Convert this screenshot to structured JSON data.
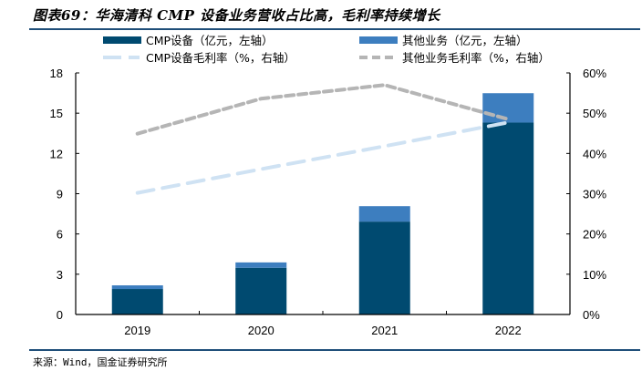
{
  "title": "图表69：华海清科 CMP 设备业务营收占比高，毛利率持续增长",
  "source": "来源：Wind，国金证券研究所",
  "colors": {
    "cmp_equipment": "#004a70",
    "other_business": "#3d7ebf",
    "cmp_margin": "#cfe2f3",
    "other_margin": "#b5b5b5",
    "rule": "#1f4e79"
  },
  "chart_data": {
    "type": "bar",
    "stacked": true,
    "title": "华海清科 CMP 设备业务营收占比高，毛利率持续增长",
    "categories": [
      "2019",
      "2020",
      "2021",
      "2022"
    ],
    "series": [
      {
        "name": "CMP设备（亿元，左轴）",
        "type": "bar",
        "axis": "left",
        "values": [
          1.9,
          3.48,
          6.92,
          14.3
        ]
      },
      {
        "name": "其他业务（亿元，左轴）",
        "type": "bar",
        "axis": "left",
        "values": [
          0.27,
          0.4,
          1.15,
          2.19
        ]
      },
      {
        "name": "CMP设备毛利率（%，右轴）",
        "type": "line",
        "axis": "right",
        "style": "dashed",
        "values": [
          30.2,
          36.1,
          41.8,
          47.7
        ]
      },
      {
        "name": "其他业务毛利率（%，右轴）",
        "type": "line",
        "axis": "right",
        "style": "dashed",
        "values": [
          44.9,
          53.6,
          57.0,
          48.5
        ]
      }
    ],
    "y_left": {
      "min": 0,
      "max": 18,
      "ticks": [
        0,
        3,
        6,
        9,
        12,
        15,
        18
      ],
      "tick_labels": [
        "0",
        "3",
        "6",
        "9",
        "12",
        "15",
        "18"
      ]
    },
    "y_right": {
      "min": 0,
      "max": 60,
      "ticks": [
        0,
        10,
        20,
        30,
        40,
        50,
        60
      ],
      "tick_labels": [
        "0%",
        "10%",
        "20%",
        "30%",
        "40%",
        "50%",
        "60%"
      ]
    },
    "xlabel": "",
    "ylabel": "",
    "grid": false,
    "legend_position": "top"
  }
}
